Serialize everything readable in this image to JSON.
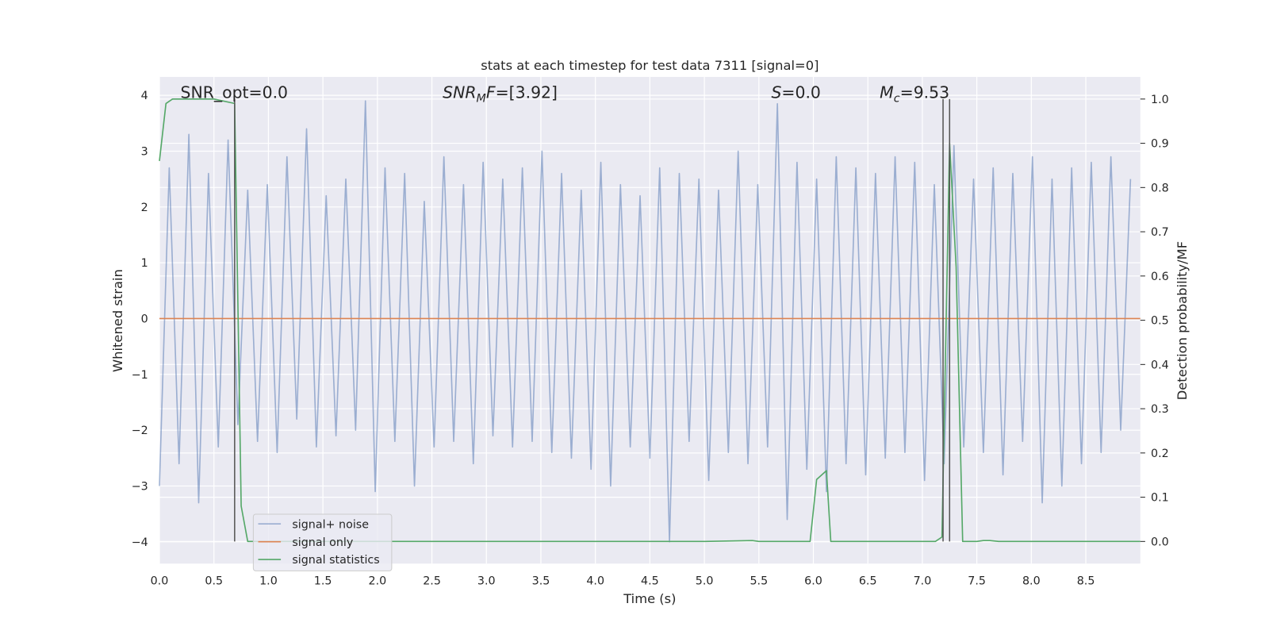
{
  "chart_data": {
    "type": "line",
    "title": "stats at each timestep for test data 7311 [signal=0]",
    "xlabel": "Time (s)",
    "ylabel": "Whitened strain",
    "y2label": "Detection probability/MF",
    "xlim": [
      0,
      9
    ],
    "ylim": [
      -4.39,
      4.33
    ],
    "y2lim": [
      -0.05,
      1.05
    ],
    "xticks": [
      {
        "value": 0,
        "label": "0.0"
      },
      0.5,
      {
        "value": 1,
        "label": "1.0"
      },
      1.5,
      {
        "value": 2,
        "label": "2.0"
      },
      2.5,
      {
        "value": 3,
        "label": "3.0"
      },
      3.5,
      {
        "value": 4,
        "label": "4.0"
      },
      4.5,
      {
        "value": 5,
        "label": "5.0"
      },
      5.5,
      {
        "value": 6,
        "label": "6.0"
      },
      6.5,
      {
        "value": 7,
        "label": "7.0"
      },
      7.5,
      {
        "value": 8,
        "label": "8.0"
      },
      8.5
    ],
    "yticks": [
      {
        "value": -4,
        "label": "−4"
      },
      {
        "value": -3,
        "label": "−3"
      },
      {
        "value": -2,
        "label": "−2"
      },
      {
        "value": -1,
        "label": "−1"
      },
      0,
      1,
      2,
      3,
      4
    ],
    "y2ticks": [
      {
        "value": 0,
        "label": "0.0"
      },
      0.1,
      0.2,
      0.3,
      0.4,
      0.5,
      0.6,
      0.7,
      0.8,
      0.9,
      {
        "value": 1,
        "label": "1.0"
      }
    ],
    "grid": true,
    "legend": "lower left",
    "series": [
      {
        "name": "signal+ noise",
        "color": "#4c72b0",
        "opacity": 0.5,
        "x": [
          0,
          0.09,
          0.18,
          0.27,
          0.36,
          0.45,
          0.54,
          0.63,
          0.72,
          0.81,
          0.9,
          0.99,
          1.08,
          1.17,
          1.26,
          1.35,
          1.44,
          1.53,
          1.62,
          1.71,
          1.8,
          1.89,
          1.98,
          2.07,
          2.16,
          2.25,
          2.34,
          2.43,
          2.52,
          2.61,
          2.7,
          2.79,
          2.88,
          2.97,
          3.06,
          3.15,
          3.24,
          3.33,
          3.42,
          3.51,
          3.6,
          3.69,
          3.78,
          3.87,
          3.96,
          4.05,
          4.14,
          4.23,
          4.32,
          4.41,
          4.5,
          4.59,
          4.68,
          4.77,
          4.86,
          4.95,
          5.04,
          5.13,
          5.22,
          5.31,
          5.4,
          5.49,
          5.58,
          5.67,
          5.76,
          5.85,
          5.94,
          6.03,
          6.12,
          6.21,
          6.3,
          6.39,
          6.48,
          6.57,
          6.66,
          6.75,
          6.84,
          6.93,
          7.02,
          7.11,
          7.2,
          7.29,
          7.38,
          7.47,
          7.56,
          7.65,
          7.74,
          7.83,
          7.92,
          8.01,
          8.1,
          8.19,
          8.28,
          8.37,
          8.46,
          8.55,
          8.64,
          8.73,
          8.82,
          8.91
        ],
        "values": [
          -3.0,
          2.7,
          -2.6,
          3.3,
          -3.3,
          2.6,
          -2.3,
          3.2,
          -1.9,
          2.3,
          -2.2,
          2.4,
          -2.4,
          2.9,
          -1.8,
          3.4,
          -2.3,
          2.2,
          -2.1,
          2.5,
          -2.0,
          3.9,
          -3.1,
          2.7,
          -2.2,
          2.6,
          -3.0,
          2.1,
          -2.3,
          2.9,
          -2.2,
          2.4,
          -2.6,
          2.8,
          -2.1,
          2.5,
          -2.3,
          2.7,
          -2.2,
          3.0,
          -2.4,
          2.6,
          -2.5,
          2.3,
          -2.7,
          2.8,
          -3.0,
          2.4,
          -2.3,
          2.2,
          -2.5,
          2.7,
          -4.0,
          2.6,
          -2.2,
          2.5,
          -2.9,
          2.3,
          -2.4,
          3.0,
          -2.6,
          2.4,
          -2.3,
          3.85,
          -3.6,
          2.8,
          -2.7,
          2.5,
          -3.1,
          2.9,
          -2.6,
          2.7,
          -2.8,
          2.6,
          -2.5,
          2.9,
          -2.4,
          2.8,
          -2.9,
          2.4,
          -2.6,
          3.1,
          -2.3,
          2.5,
          -2.4,
          2.7,
          -2.8,
          2.6,
          -2.2,
          2.9,
          -3.3,
          2.5,
          -3.0,
          2.7,
          -2.6,
          2.8,
          -2.4,
          2.9,
          -2.0,
          2.5
        ]
      },
      {
        "name": "signal only",
        "color": "#dd8452",
        "opacity": 1,
        "x": [
          0,
          9
        ],
        "values": [
          0,
          0
        ]
      },
      {
        "name": "signal statistics",
        "color": "#55a868",
        "opacity": 1,
        "axis": "y2",
        "x": [
          0,
          0.06,
          0.12,
          0.25,
          0.5,
          0.69,
          0.75,
          0.81,
          1.0,
          2.0,
          3.0,
          4.0,
          5.0,
          5.44,
          5.5,
          5.97,
          6.03,
          6.12,
          6.16,
          6.5,
          7.0,
          7.12,
          7.18,
          7.25,
          7.31,
          7.37,
          7.5,
          7.56,
          7.62,
          7.7,
          8.0,
          9.0
        ],
        "values": [
          0.86,
          0.99,
          1.0,
          1.0,
          1.0,
          0.99,
          0.08,
          0.0,
          0,
          0,
          0,
          0,
          0,
          0.002,
          0,
          0,
          0.14,
          0.16,
          0,
          0,
          0,
          0,
          0.01,
          0.9,
          0.62,
          0,
          0,
          0.002,
          0.002,
          0,
          0,
          0
        ]
      }
    ],
    "vlines": {
      "x": [
        0.69,
        7.19,
        7.25
      ],
      "ymin": 0,
      "ymax": 1,
      "axis": "y2",
      "color": "#555555"
    },
    "annotations": [
      {
        "parts": [
          {
            "text": "SNR_opt=0.0",
            "style": "normal"
          }
        ]
      },
      {
        "parts": [
          {
            "text": "SNR",
            "style": "italic"
          },
          {
            "text": "M",
            "style": "sub"
          },
          {
            "text": "F",
            "style": "italic"
          },
          {
            "text": "=[3.92]",
            "style": "normal"
          }
        ]
      },
      {
        "parts": [
          {
            "text": "S",
            "style": "italic"
          },
          {
            "text": "=0.0",
            "style": "normal"
          }
        ]
      },
      {
        "parts": [
          {
            "text": "M",
            "style": "italic"
          },
          {
            "text": "c",
            "style": "sub"
          },
          {
            "text": "=9.53",
            "style": "normal"
          }
        ]
      }
    ]
  }
}
